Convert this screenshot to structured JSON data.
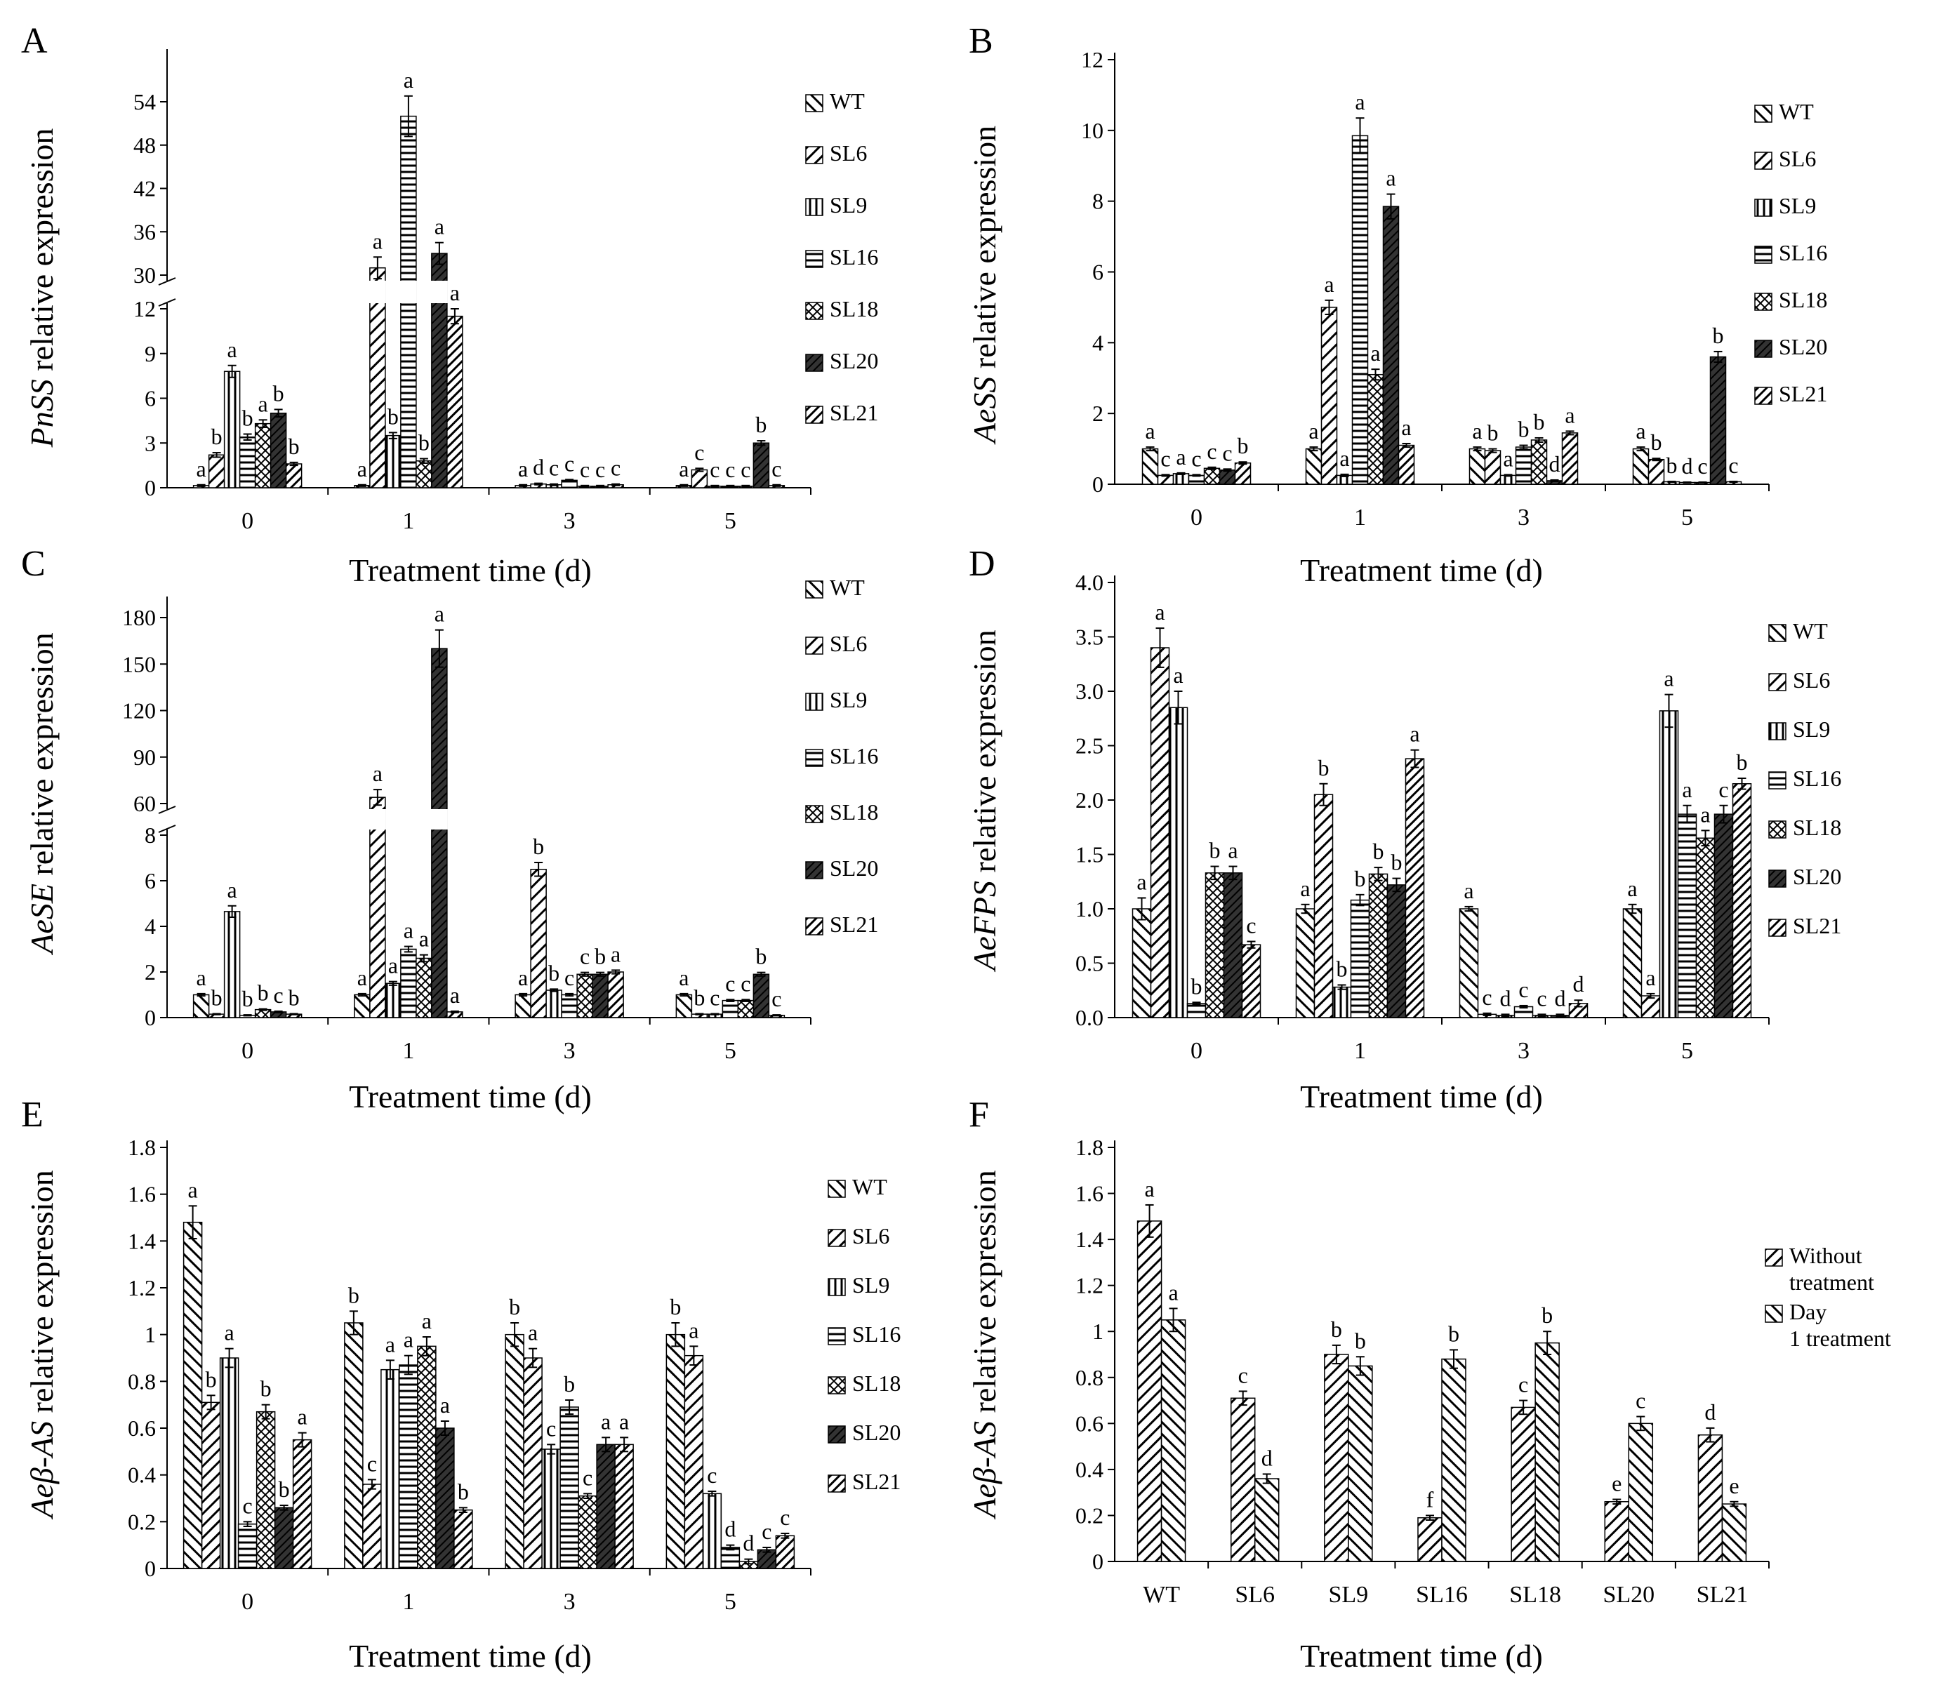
{
  "chart_data": [
    {
      "type": "bar",
      "panel_label": "A",
      "ylabel_italic": "PnSS",
      "ylabel_rest": " relative expression",
      "xlabel": "Treatment time (d)",
      "categories": [
        "0",
        "1",
        "3",
        "5"
      ],
      "break": {
        "lo_max": 12,
        "hi_min": 30,
        "hi_max": 54,
        "lo_ticks": [
          "0",
          "3",
          "6",
          "9",
          "12"
        ],
        "hi_ticks": [
          "30",
          "36",
          "42",
          "48",
          "54"
        ]
      },
      "series": [
        {
          "name": "WT",
          "values": [
            0.15,
            0.15,
            0.15,
            0.15
          ],
          "errors": [
            0.05,
            0.05,
            0.05,
            0.05
          ],
          "letters": [
            "a",
            "a",
            "a",
            "a"
          ]
        },
        {
          "name": "SL6",
          "values": [
            2.2,
            31.0,
            0.25,
            1.2
          ],
          "errors": [
            0.15,
            1.5,
            0.05,
            0.1
          ],
          "letters": [
            "b",
            "a",
            "d",
            "c"
          ]
        },
        {
          "name": "SL9",
          "values": [
            7.8,
            3.5,
            0.2,
            0.1
          ],
          "errors": [
            0.4,
            0.2,
            0.05,
            0.05
          ],
          "letters": [
            "a",
            "b",
            "c",
            "c"
          ]
        },
        {
          "name": "SL16",
          "values": [
            3.4,
            52.0,
            0.5,
            0.1
          ],
          "errors": [
            0.2,
            2.8,
            0.05,
            0.05
          ],
          "letters": [
            "b",
            "a",
            "c",
            "c"
          ]
        },
        {
          "name": "SL18",
          "values": [
            4.3,
            1.8,
            0.1,
            0.1
          ],
          "errors": [
            0.25,
            0.15,
            0.05,
            0.05
          ],
          "letters": [
            "a",
            "b",
            "c",
            "c"
          ]
        },
        {
          "name": "SL20",
          "values": [
            5.0,
            33.0,
            0.1,
            3.0
          ],
          "errors": [
            0.25,
            1.5,
            0.05,
            0.15
          ],
          "letters": [
            "b",
            "a",
            "c",
            "b"
          ]
        },
        {
          "name": "SL21",
          "values": [
            1.6,
            11.5,
            0.2,
            0.15
          ],
          "errors": [
            0.1,
            0.5,
            0.05,
            0.05
          ],
          "letters": [
            "b",
            "a",
            "c",
            "c"
          ]
        }
      ]
    },
    {
      "type": "bar",
      "panel_label": "B",
      "ylabel_italic": "AeSS",
      "ylabel_rest": " relative expression",
      "xlabel": "Treatment time (d)",
      "categories": [
        "0",
        "1",
        "3",
        "5"
      ],
      "ylim": [
        0,
        12
      ],
      "ticks": [
        "0",
        "2",
        "4",
        "6",
        "8",
        "10",
        "12"
      ],
      "series": [
        {
          "name": "WT",
          "values": [
            1.0,
            1.0,
            1.0,
            1.0
          ],
          "errors": [
            0.05,
            0.05,
            0.05,
            0.05
          ],
          "letters": [
            "a",
            "a",
            "a",
            "a"
          ]
        },
        {
          "name": "SL6",
          "values": [
            0.25,
            5.0,
            0.95,
            0.7
          ],
          "errors": [
            0.02,
            0.2,
            0.05,
            0.03
          ],
          "letters": [
            "c",
            "a",
            "b",
            "b"
          ]
        },
        {
          "name": "SL9",
          "values": [
            0.3,
            0.25,
            0.25,
            0.07
          ],
          "errors": [
            0.02,
            0.03,
            0.02,
            0.01
          ],
          "letters": [
            "a",
            "a",
            "a",
            "b"
          ]
        },
        {
          "name": "SL16",
          "values": [
            0.25,
            9.85,
            1.05,
            0.05
          ],
          "errors": [
            0.02,
            0.5,
            0.05,
            0.01
          ],
          "letters": [
            "c",
            "a",
            "b",
            "d"
          ]
        },
        {
          "name": "SL18",
          "values": [
            0.45,
            3.1,
            1.25,
            0.05
          ],
          "errors": [
            0.03,
            0.15,
            0.06,
            0.01
          ],
          "letters": [
            "c",
            "a",
            "b",
            "c"
          ]
        },
        {
          "name": "SL20",
          "values": [
            0.4,
            7.85,
            0.1,
            3.6
          ],
          "errors": [
            0.03,
            0.35,
            0.02,
            0.15
          ],
          "letters": [
            "c",
            "a",
            "d",
            "b"
          ]
        },
        {
          "name": "SL21",
          "values": [
            0.6,
            1.1,
            1.45,
            0.07
          ],
          "errors": [
            0.03,
            0.05,
            0.05,
            0.01
          ],
          "letters": [
            "b",
            "a",
            "a",
            "c"
          ]
        }
      ]
    },
    {
      "type": "bar",
      "panel_label": "C",
      "ylabel_italic": "AeSE",
      "ylabel_rest": " relative expression",
      "xlabel": "Treatment time (d)",
      "categories": [
        "0",
        "1",
        "3",
        "5"
      ],
      "break": {
        "lo_max": 8,
        "hi_min": 60,
        "hi_max": 180,
        "lo_ticks": [
          "0",
          "2",
          "4",
          "6",
          "8"
        ],
        "hi_ticks": [
          "60",
          "90",
          "120",
          "150",
          "180"
        ]
      },
      "series": [
        {
          "name": "WT",
          "values": [
            1.0,
            1.0,
            1.0,
            1.0
          ],
          "errors": [
            0.05,
            0.05,
            0.05,
            0.05
          ],
          "letters": [
            "a",
            "a",
            "a",
            "a"
          ]
        },
        {
          "name": "SL6",
          "values": [
            0.15,
            64.0,
            6.5,
            0.15
          ],
          "errors": [
            0.02,
            5.0,
            0.3,
            0.02
          ],
          "letters": [
            "b",
            "a",
            "b",
            "b"
          ]
        },
        {
          "name": "SL9",
          "values": [
            4.65,
            1.5,
            1.2,
            0.15
          ],
          "errors": [
            0.25,
            0.08,
            0.05,
            0.02
          ],
          "letters": [
            "a",
            "a",
            "b",
            "c"
          ]
        },
        {
          "name": "SL16",
          "values": [
            0.1,
            3.0,
            1.0,
            0.75
          ],
          "errors": [
            0.02,
            0.12,
            0.05,
            0.04
          ],
          "letters": [
            "b",
            "a",
            "c",
            "c"
          ]
        },
        {
          "name": "SL18",
          "values": [
            0.35,
            2.6,
            1.9,
            0.75
          ],
          "errors": [
            0.03,
            0.15,
            0.08,
            0.04
          ],
          "letters": [
            "b",
            "a",
            "c",
            "c"
          ]
        },
        {
          "name": "SL20",
          "values": [
            0.25,
            160.0,
            1.9,
            1.9
          ],
          "errors": [
            0.03,
            12.0,
            0.08,
            0.08
          ],
          "letters": [
            "c",
            "a",
            "b",
            "b"
          ]
        },
        {
          "name": "SL21",
          "values": [
            0.15,
            0.25,
            2.0,
            0.1
          ],
          "errors": [
            0.02,
            0.03,
            0.08,
            0.02
          ],
          "letters": [
            "b",
            "a",
            "a",
            "c"
          ]
        }
      ]
    },
    {
      "type": "bar",
      "panel_label": "D",
      "ylabel_italic": "AeFPS",
      "ylabel_rest": " relative expression",
      "xlabel": "Treatment time (d)",
      "categories": [
        "0",
        "1",
        "3",
        "5"
      ],
      "ylim": [
        0,
        4
      ],
      "ticks": [
        "0.0",
        "0.5",
        "1.0",
        "1.5",
        "2.0",
        "2.5",
        "3.0",
        "3.5",
        "4.0"
      ],
      "series": [
        {
          "name": "WT",
          "values": [
            1.0,
            1.0,
            1.0,
            1.0
          ],
          "errors": [
            0.1,
            0.04,
            0.02,
            0.04
          ],
          "letters": [
            "a",
            "a",
            "a",
            "a"
          ]
        },
        {
          "name": "SL6",
          "values": [
            3.4,
            2.05,
            0.03,
            0.2
          ],
          "errors": [
            0.18,
            0.1,
            0.01,
            0.02
          ],
          "letters": [
            "a",
            "b",
            "c",
            "a"
          ]
        },
        {
          "name": "SL9",
          "values": [
            2.85,
            0.28,
            0.02,
            2.82
          ],
          "errors": [
            0.15,
            0.02,
            0.01,
            0.15
          ],
          "letters": [
            "a",
            "b",
            "d",
            "a"
          ]
        },
        {
          "name": "SL16",
          "values": [
            0.13,
            1.08,
            0.1,
            1.87
          ],
          "errors": [
            0.01,
            0.05,
            0.01,
            0.08
          ],
          "letters": [
            "b",
            "b",
            "c",
            "a"
          ]
        },
        {
          "name": "SL18",
          "values": [
            1.33,
            1.32,
            0.02,
            1.65
          ],
          "errors": [
            0.06,
            0.06,
            0.01,
            0.07
          ],
          "letters": [
            "b",
            "b",
            "c",
            "a"
          ]
        },
        {
          "name": "SL20",
          "values": [
            1.33,
            1.22,
            0.02,
            1.87
          ],
          "errors": [
            0.06,
            0.06,
            0.01,
            0.08
          ],
          "letters": [
            "a",
            "b",
            "d",
            "c"
          ]
        },
        {
          "name": "SL21",
          "values": [
            0.67,
            2.38,
            0.13,
            2.15
          ],
          "errors": [
            0.03,
            0.08,
            0.03,
            0.05
          ],
          "letters": [
            "c",
            "a",
            "d",
            "b"
          ]
        }
      ]
    },
    {
      "type": "bar",
      "panel_label": "E",
      "ylabel_italic": "Aeβ-AS",
      "ylabel_rest": " relative expression",
      "xlabel": "Treatment time (d)",
      "categories": [
        "0",
        "1",
        "3",
        "5"
      ],
      "ylim": [
        0,
        1.8
      ],
      "ticks": [
        "0",
        "0.2",
        "0.4",
        "0.6",
        "0.8",
        "1",
        "1.2",
        "1.4",
        "1.6",
        "1.8"
      ],
      "series": [
        {
          "name": "WT",
          "values": [
            1.48,
            1.05,
            1.0,
            1.0
          ],
          "errors": [
            0.07,
            0.05,
            0.05,
            0.05
          ],
          "letters": [
            "a",
            "b",
            "b",
            "b"
          ]
        },
        {
          "name": "SL6",
          "values": [
            0.71,
            0.36,
            0.9,
            0.91
          ],
          "errors": [
            0.03,
            0.02,
            0.04,
            0.04
          ],
          "letters": [
            "b",
            "c",
            "a",
            "a"
          ]
        },
        {
          "name": "SL9",
          "values": [
            0.9,
            0.85,
            0.51,
            0.32
          ],
          "errors": [
            0.04,
            0.04,
            0.02,
            0.01
          ],
          "letters": [
            "a",
            "a",
            "c",
            "c"
          ]
        },
        {
          "name": "SL16",
          "values": [
            0.19,
            0.87,
            0.69,
            0.09
          ],
          "errors": [
            0.01,
            0.04,
            0.03,
            0.01
          ],
          "letters": [
            "c",
            "a",
            "b",
            "d"
          ]
        },
        {
          "name": "SL18",
          "values": [
            0.67,
            0.95,
            0.31,
            0.03
          ],
          "errors": [
            0.03,
            0.04,
            0.01,
            0.01
          ],
          "letters": [
            "b",
            "a",
            "c",
            "d"
          ]
        },
        {
          "name": "SL20",
          "values": [
            0.26,
            0.6,
            0.53,
            0.08
          ],
          "errors": [
            0.01,
            0.03,
            0.03,
            0.01
          ],
          "letters": [
            "b",
            "a",
            "a",
            "c"
          ]
        },
        {
          "name": "SL21",
          "values": [
            0.55,
            0.25,
            0.53,
            0.14
          ],
          "errors": [
            0.03,
            0.01,
            0.03,
            0.01
          ],
          "letters": [
            "a",
            "b",
            "a",
            "c"
          ]
        }
      ]
    },
    {
      "type": "bar",
      "panel_label": "F",
      "ylabel_italic": "Aeβ-AS",
      "ylabel_rest": " relative expression",
      "xlabel": "Treatment time (d)",
      "categories": [
        "WT",
        "SL6",
        "SL9",
        "SL16",
        "SL18",
        "SL20",
        "SL21"
      ],
      "ylim": [
        0,
        1.8
      ],
      "ticks": [
        "0",
        "0.2",
        "0.4",
        "0.6",
        "0.8",
        "1",
        "1.2",
        "1.4",
        "1.6",
        "1.8"
      ],
      "series": [
        {
          "name": "Without treatment",
          "values": [
            1.48,
            0.71,
            0.9,
            0.19,
            0.67,
            0.26,
            0.55
          ],
          "errors": [
            0.07,
            0.03,
            0.04,
            0.01,
            0.03,
            0.01,
            0.03
          ],
          "letters": [
            "a",
            "c",
            "b",
            "f",
            "c",
            "e",
            "d"
          ]
        },
        {
          "name": "Day 1 treatment",
          "values": [
            1.05,
            0.36,
            0.85,
            0.88,
            0.95,
            0.6,
            0.25
          ],
          "errors": [
            0.05,
            0.02,
            0.04,
            0.04,
            0.05,
            0.03,
            0.01
          ],
          "letters": [
            "a",
            "d",
            "b",
            "b",
            "b",
            "c",
            "e"
          ]
        }
      ]
    }
  ]
}
